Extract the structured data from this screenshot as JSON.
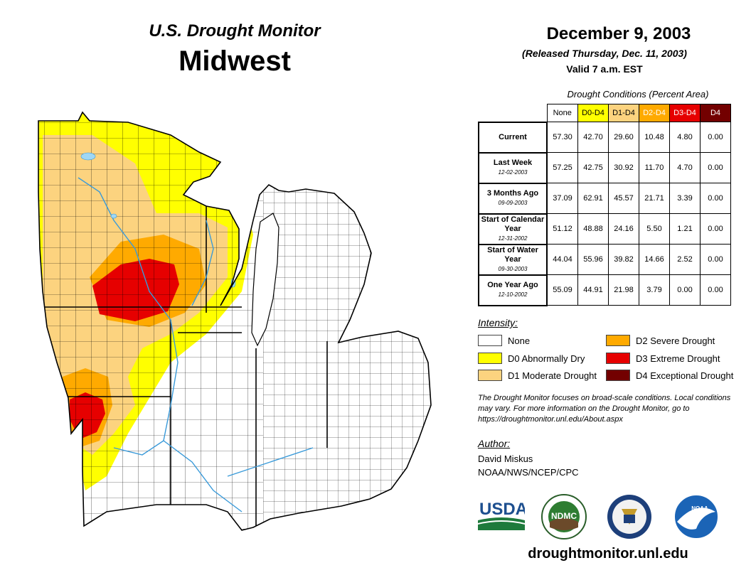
{
  "header": {
    "title": "U.S. Drought Monitor",
    "region": "Midwest",
    "date": "December 9, 2003",
    "released": "(Released Thursday, Dec. 11, 2003)",
    "valid": "Valid 7 a.m. EST"
  },
  "table": {
    "caption": "Drought Conditions (Percent Area)",
    "columns": [
      {
        "label": "None",
        "color": "#ffffff",
        "text": "#000000"
      },
      {
        "label": "D0-D4",
        "color": "#ffff00",
        "text": "#000000"
      },
      {
        "label": "D1-D4",
        "color": "#fcd37f",
        "text": "#000000"
      },
      {
        "label": "D2-D4",
        "color": "#ffaa00",
        "text": "#ffffff"
      },
      {
        "label": "D3-D4",
        "color": "#e60000",
        "text": "#ffffff"
      },
      {
        "label": "D4",
        "color": "#730000",
        "text": "#ffffff"
      }
    ],
    "rows": [
      {
        "label": "Current",
        "sub": "",
        "values": [
          "57.30",
          "42.70",
          "29.60",
          "10.48",
          "4.80",
          "0.00"
        ]
      },
      {
        "label": "Last Week",
        "sub": "12-02-2003",
        "values": [
          "57.25",
          "42.75",
          "30.92",
          "11.70",
          "4.70",
          "0.00"
        ]
      },
      {
        "label": "3 Months Ago",
        "sub": "09-09-2003",
        "values": [
          "37.09",
          "62.91",
          "45.57",
          "21.71",
          "3.39",
          "0.00"
        ]
      },
      {
        "label": "Start of Calendar Year",
        "sub": "12-31-2002",
        "values": [
          "51.12",
          "48.88",
          "24.16",
          "5.50",
          "1.21",
          "0.00"
        ]
      },
      {
        "label": "Start of Water Year",
        "sub": "09-30-2003",
        "values": [
          "44.04",
          "55.96",
          "39.82",
          "14.66",
          "2.52",
          "0.00"
        ]
      },
      {
        "label": "One Year Ago",
        "sub": "12-10-2002",
        "values": [
          "55.09",
          "44.91",
          "21.98",
          "3.79",
          "0.00",
          "0.00"
        ]
      }
    ]
  },
  "legend": {
    "title": "Intensity:",
    "items": [
      {
        "label": "None",
        "color": "#ffffff"
      },
      {
        "label": "D0 Abnormally Dry",
        "color": "#ffff00"
      },
      {
        "label": "D1 Moderate Drought",
        "color": "#fcd37f"
      },
      {
        "label": "D2 Severe Drought",
        "color": "#ffaa00"
      },
      {
        "label": "D3 Extreme Drought",
        "color": "#e60000"
      },
      {
        "label": "D4 Exceptional Drought",
        "color": "#730000"
      }
    ]
  },
  "note": "The Drought Monitor focuses on broad-scale conditions. Local conditions may vary. For more information on the Drought Monitor, go to https://droughtmonitor.unl.edu/About.aspx",
  "author": {
    "title": "Author:",
    "name": "David Miskus",
    "org": "NOAA/NWS/NCEP/CPC"
  },
  "logos": {
    "usda": "USDA",
    "ndmc": "NDMC",
    "noaa": "NOAA"
  },
  "footer": {
    "site": "droughtmonitor.unl.edu"
  },
  "map": {
    "colors": {
      "none": "#ffffff",
      "d0": "#ffff00",
      "d1": "#fcd37f",
      "d2": "#ffaa00",
      "d3": "#e60000",
      "water": "#9fd7f5",
      "river": "#3a9ad9",
      "border": "#000000"
    }
  }
}
